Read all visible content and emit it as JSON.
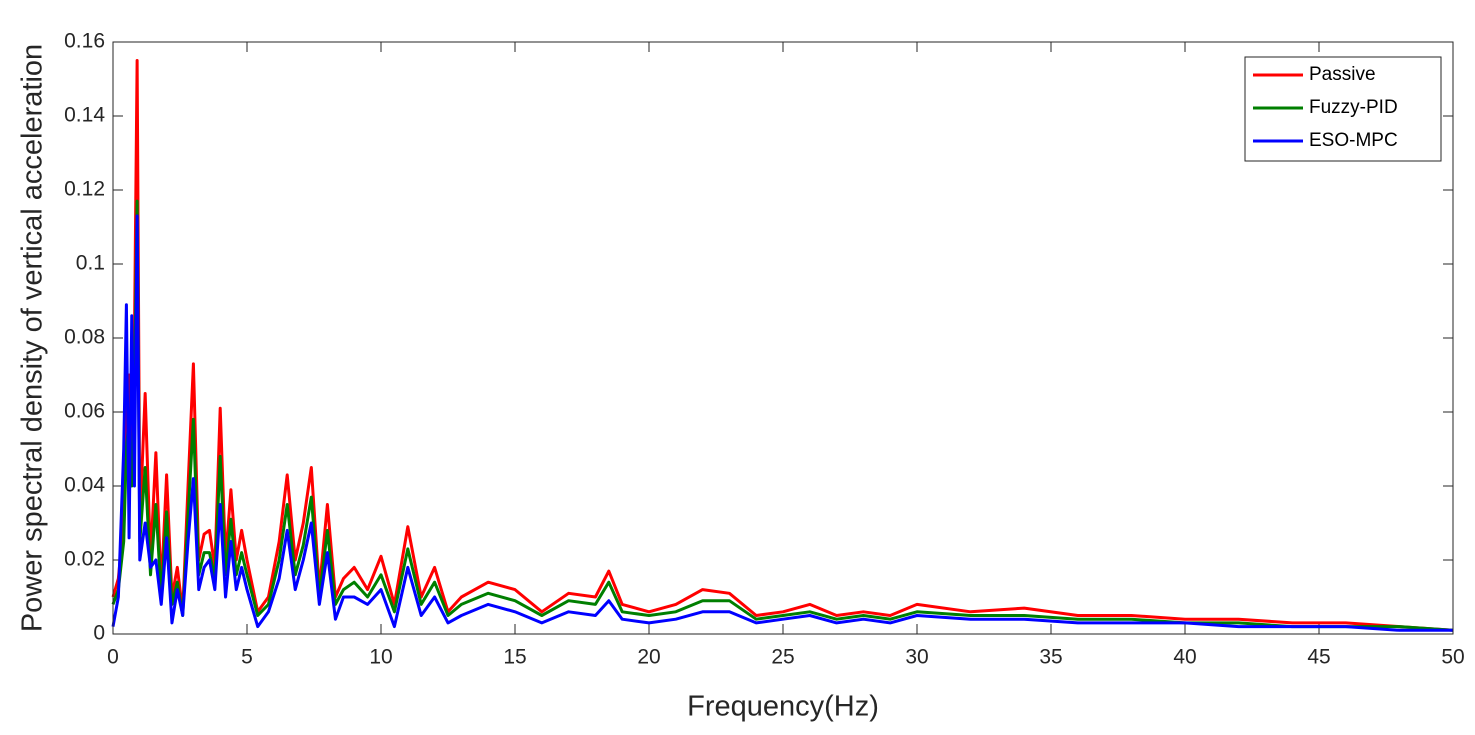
{
  "chart_data": {
    "type": "line",
    "xlabel": "Frequency(Hz)",
    "ylabel": "Power spectral density of vertical acceleration",
    "x": [
      0,
      0.2,
      0.4,
      0.5,
      0.6,
      0.7,
      0.8,
      0.9,
      1.0,
      1.2,
      1.4,
      1.6,
      1.8,
      2.0,
      2.2,
      2.4,
      2.6,
      2.8,
      3.0,
      3.2,
      3.4,
      3.6,
      3.8,
      4.0,
      4.2,
      4.4,
      4.6,
      4.8,
      5.0,
      5.4,
      5.8,
      6.2,
      6.5,
      6.8,
      7.1,
      7.4,
      7.7,
      8.0,
      8.3,
      8.6,
      9.0,
      9.5,
      10,
      10.5,
      11,
      11.5,
      12,
      12.5,
      13,
      14,
      15,
      16,
      17,
      18,
      18.5,
      19,
      20,
      21,
      22,
      23,
      24,
      25,
      26,
      27,
      28,
      29,
      30,
      32,
      34,
      36,
      38,
      40,
      42,
      44,
      46,
      48,
      50
    ],
    "series": [
      {
        "name": "Passive",
        "color": "#ff0000",
        "values": [
          0.01,
          0.015,
          0.03,
          0.06,
          0.07,
          0.05,
          0.08,
          0.155,
          0.03,
          0.065,
          0.02,
          0.049,
          0.012,
          0.043,
          0.01,
          0.018,
          0.006,
          0.04,
          0.073,
          0.02,
          0.027,
          0.028,
          0.018,
          0.061,
          0.02,
          0.039,
          0.02,
          0.028,
          0.02,
          0.006,
          0.01,
          0.025,
          0.043,
          0.02,
          0.03,
          0.045,
          0.012,
          0.035,
          0.01,
          0.015,
          0.018,
          0.012,
          0.021,
          0.008,
          0.029,
          0.01,
          0.018,
          0.006,
          0.01,
          0.014,
          0.012,
          0.006,
          0.011,
          0.01,
          0.017,
          0.008,
          0.006,
          0.008,
          0.012,
          0.011,
          0.005,
          0.006,
          0.008,
          0.005,
          0.006,
          0.005,
          0.008,
          0.006,
          0.007,
          0.005,
          0.005,
          0.004,
          0.004,
          0.003,
          0.003,
          0.002,
          0.001
        ]
      },
      {
        "name": "Fuzzy-PID",
        "color": "#007f00",
        "values": [
          0.008,
          0.012,
          0.025,
          0.05,
          0.058,
          0.04,
          0.065,
          0.117,
          0.025,
          0.045,
          0.016,
          0.035,
          0.01,
          0.033,
          0.008,
          0.014,
          0.005,
          0.032,
          0.058,
          0.016,
          0.022,
          0.022,
          0.015,
          0.048,
          0.016,
          0.031,
          0.016,
          0.022,
          0.016,
          0.005,
          0.008,
          0.02,
          0.035,
          0.016,
          0.024,
          0.037,
          0.01,
          0.028,
          0.008,
          0.012,
          0.014,
          0.01,
          0.016,
          0.006,
          0.023,
          0.008,
          0.014,
          0.005,
          0.008,
          0.011,
          0.009,
          0.005,
          0.009,
          0.008,
          0.014,
          0.006,
          0.005,
          0.006,
          0.009,
          0.009,
          0.004,
          0.005,
          0.006,
          0.004,
          0.005,
          0.004,
          0.006,
          0.005,
          0.005,
          0.004,
          0.004,
          0.003,
          0.003,
          0.002,
          0.002,
          0.002,
          0.001
        ]
      },
      {
        "name": "ESO-MPC",
        "color": "#0000ff",
        "values": [
          0.002,
          0.01,
          0.05,
          0.089,
          0.026,
          0.086,
          0.04,
          0.113,
          0.02,
          0.03,
          0.018,
          0.02,
          0.008,
          0.026,
          0.003,
          0.012,
          0.005,
          0.025,
          0.042,
          0.012,
          0.018,
          0.02,
          0.012,
          0.035,
          0.01,
          0.025,
          0.012,
          0.018,
          0.012,
          0.002,
          0.006,
          0.015,
          0.028,
          0.012,
          0.02,
          0.03,
          0.008,
          0.022,
          0.004,
          0.01,
          0.01,
          0.008,
          0.012,
          0.002,
          0.018,
          0.005,
          0.01,
          0.003,
          0.005,
          0.008,
          0.006,
          0.003,
          0.006,
          0.005,
          0.009,
          0.004,
          0.003,
          0.004,
          0.006,
          0.006,
          0.003,
          0.004,
          0.005,
          0.003,
          0.004,
          0.003,
          0.005,
          0.004,
          0.004,
          0.003,
          0.003,
          0.003,
          0.002,
          0.002,
          0.002,
          0.001,
          0.001
        ]
      }
    ],
    "xlim": [
      0,
      50
    ],
    "xticks": [
      0,
      5,
      10,
      15,
      20,
      25,
      30,
      35,
      40,
      45,
      50
    ],
    "ylim": [
      0,
      0.16
    ],
    "yticks": [
      0,
      0.02,
      0.04,
      0.06,
      0.08,
      0.1,
      0.12,
      0.14,
      0.16
    ],
    "legend": "upper right",
    "grid": false
  }
}
